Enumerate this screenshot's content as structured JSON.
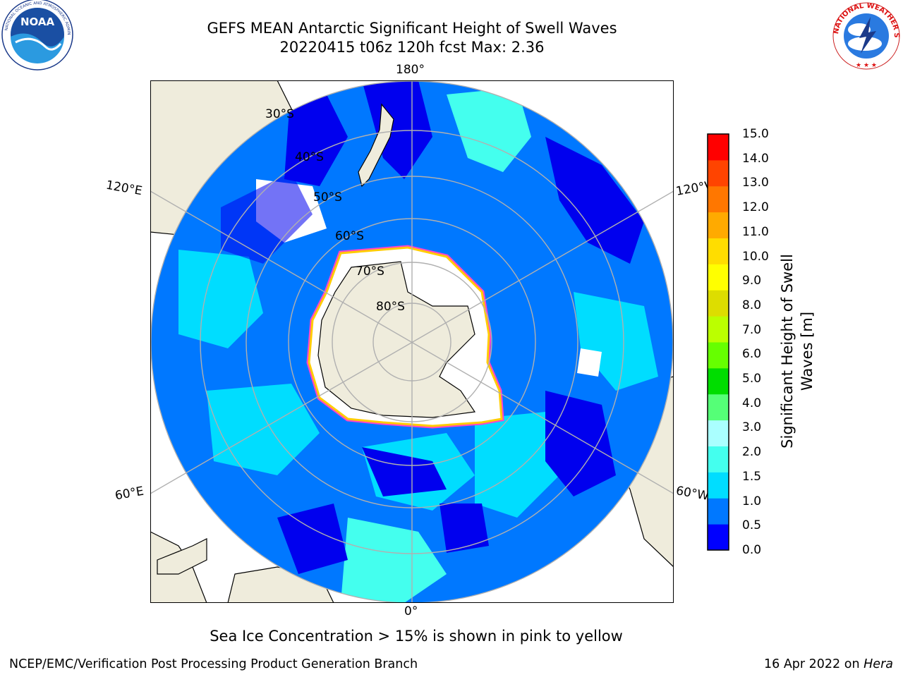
{
  "title": {
    "line1": "GEFS MEAN Antarctic Significant Height of Swell Waves",
    "line2": "20220415 t06z 120h fcst   Max: 2.36"
  },
  "logos": {
    "left": {
      "text": "NOAA",
      "ring_text": "NATIONAL OCEANIC AND ATMOSPHERIC ADMINISTRATION · U.S. DEPARTMENT OF COMMERCE"
    },
    "right": {
      "ring_text": "NATIONAL WEATHER SERVICE"
    }
  },
  "map": {
    "longitude_labels": {
      "top": "180°",
      "bottom": "0°",
      "upper_left": "120°E",
      "upper_right": "120°W",
      "lower_left": "60°E",
      "lower_right": "60°W"
    },
    "latitude_labels": [
      "30°S",
      "40°S",
      "50°S",
      "60°S",
      "70°S",
      "80°S"
    ],
    "colors": {
      "land": "#efecdc",
      "ice_edge_outer": "#ff44cc",
      "ice_edge_inner": "#ffcc00",
      "grid": "#b0b0b0"
    }
  },
  "colorbar": {
    "label_line1": "Significant Height of Swell",
    "label_line2": "Waves [m]",
    "ticks": [
      "15.0",
      "14.0",
      "13.0",
      "12.0",
      "11.0",
      "10.0",
      "9.0",
      "8.0",
      "7.0",
      "6.0",
      "5.0",
      "4.0",
      "3.0",
      "2.0",
      "1.5",
      "1.0",
      "0.5",
      "0.0"
    ],
    "colors_bottom_to_top": [
      "#0000ff",
      "#0078ff",
      "#00ddff",
      "#44ffee",
      "#aaffff",
      "#55ff77",
      "#00dd00",
      "#66ff00",
      "#bbff00",
      "#dddd00",
      "#ffff00",
      "#ffdd00",
      "#ffaa00",
      "#ff7700",
      "#ff4400",
      "#ff0000"
    ]
  },
  "caption": "Sea Ice Concentration > 15% is shown in pink to yellow",
  "footer": {
    "left": "NCEP/EMC/Verification Post Processing Product Generation Branch",
    "right_date": "16 Apr 2022 on",
    "right_host": "Hera"
  }
}
